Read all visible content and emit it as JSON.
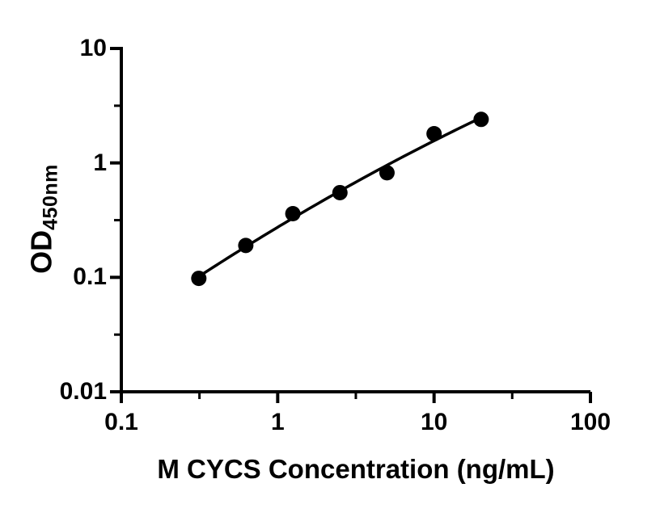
{
  "chart_data": {
    "type": "scatter",
    "xlabel": "M CYCS Concentration (ng/mL)",
    "ylabel_main": "OD",
    "ylabel_sub": "450nm",
    "x_scale": "log",
    "y_scale": "log",
    "xlim": [
      0.1,
      100
    ],
    "ylim": [
      0.01,
      10
    ],
    "x_ticks": [
      0.1,
      1,
      10,
      100
    ],
    "x_tick_labels": [
      "0.1",
      "1",
      "10",
      "100"
    ],
    "y_ticks": [
      10,
      1,
      0.1,
      0.01
    ],
    "y_tick_labels": [
      "10",
      "1",
      "0.1",
      "0.01"
    ],
    "x_minor_ticks": [
      0.316,
      3.16,
      31.6
    ],
    "y_minor_ticks": [
      3.16,
      0.316,
      0.0316
    ],
    "grid": false,
    "legend": "none",
    "points": [
      {
        "x": 0.313,
        "y": 0.098
      },
      {
        "x": 0.625,
        "y": 0.19
      },
      {
        "x": 1.25,
        "y": 0.36
      },
      {
        "x": 2.5,
        "y": 0.55
      },
      {
        "x": 5,
        "y": 0.82
      },
      {
        "x": 10,
        "y": 1.8
      },
      {
        "x": 20,
        "y": 2.4
      }
    ],
    "fit": {
      "type": "smooth-loglog",
      "a0": -0.2455,
      "a1": 0.7687,
      "a2": -0.0657,
      "u_center": 0.398,
      "x_start": 0.313,
      "x_end": 20
    },
    "axis_color": "#000000",
    "marker_color": "#000000",
    "line_color": "#000000",
    "background_color": "#ffffff"
  }
}
